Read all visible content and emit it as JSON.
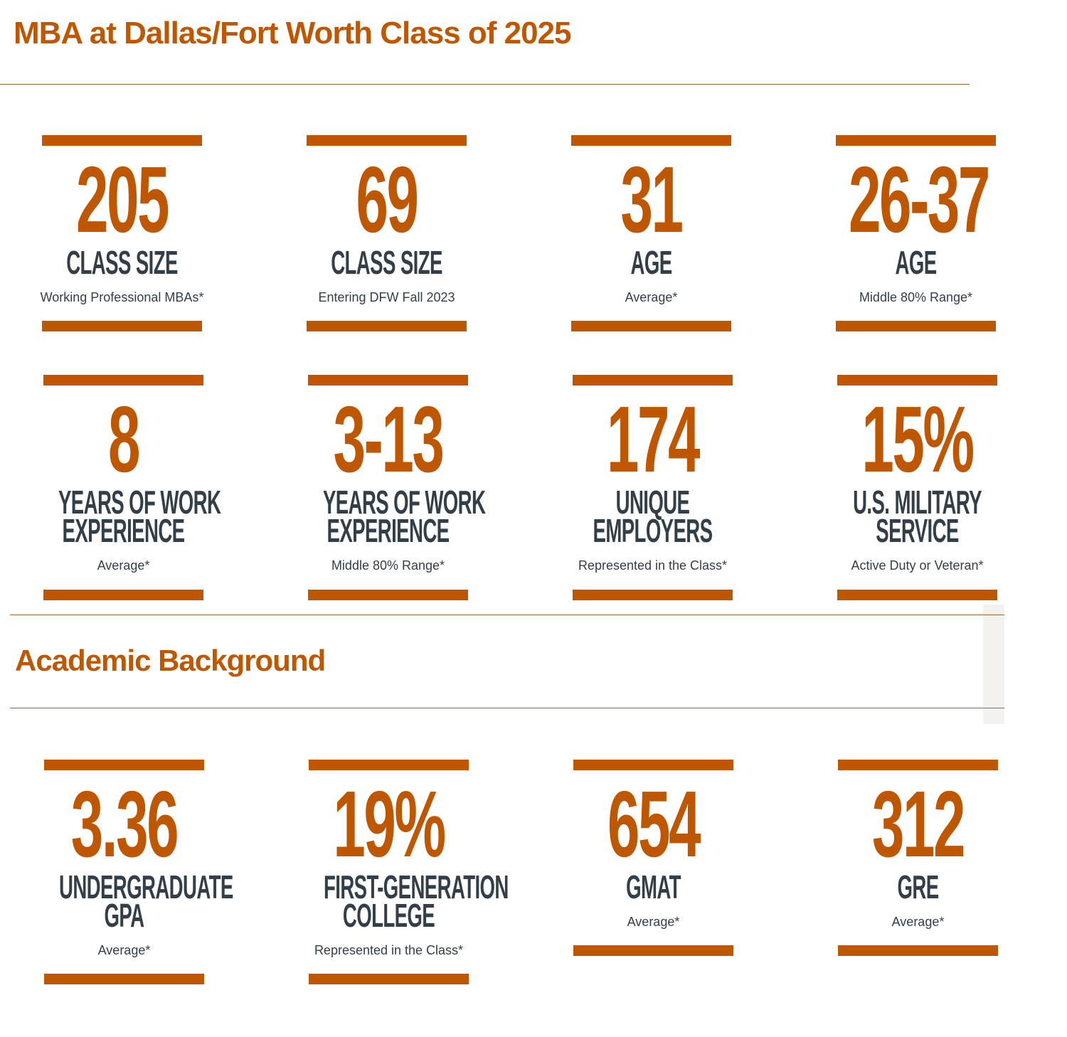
{
  "title": "MBA at Dallas/Fort Worth Class of 2025",
  "accent": "#bf5700",
  "text_color": "#333f48",
  "stats": [
    {
      "value": "205",
      "label": [
        "CLASS SIZE"
      ],
      "sub": "Working Professional MBAs*"
    },
    {
      "value": "69",
      "label": [
        "CLASS SIZE"
      ],
      "sub": "Entering DFW Fall 2023"
    },
    {
      "value": "31",
      "label": [
        "AGE"
      ],
      "sub": "Average*"
    },
    {
      "value": "26-37",
      "label": [
        "AGE"
      ],
      "sub": "Middle 80% Range*"
    },
    {
      "value": "8",
      "label": [
        "YEARS OF WORK",
        "EXPERIENCE"
      ],
      "sub": "Average*"
    },
    {
      "value": "3-13",
      "label": [
        "YEARS OF WORK",
        "EXPERIENCE"
      ],
      "sub": "Middle 80% Range*"
    },
    {
      "value": "174",
      "label": [
        "UNIQUE",
        "EMPLOYERS"
      ],
      "sub": "Represented in the Class*"
    },
    {
      "value": "15%",
      "label": [
        "U.S. MILITARY",
        "SERVICE"
      ],
      "sub": "Active Duty or Veteran*"
    }
  ],
  "academic": {
    "title": "Academic Background",
    "stats": [
      {
        "value": "3.36",
        "label": [
          "UNDERGRADUATE",
          "GPA"
        ],
        "sub": "Average*"
      },
      {
        "value": "19%",
        "label": [
          "FIRST-GENERATION",
          "COLLEGE"
        ],
        "sub": "Represented in the Class*"
      },
      {
        "value": "654",
        "label": [
          "GMAT"
        ],
        "sub": "Average*"
      },
      {
        "value": "312",
        "label": [
          "GRE"
        ],
        "sub": "Average*"
      }
    ]
  }
}
